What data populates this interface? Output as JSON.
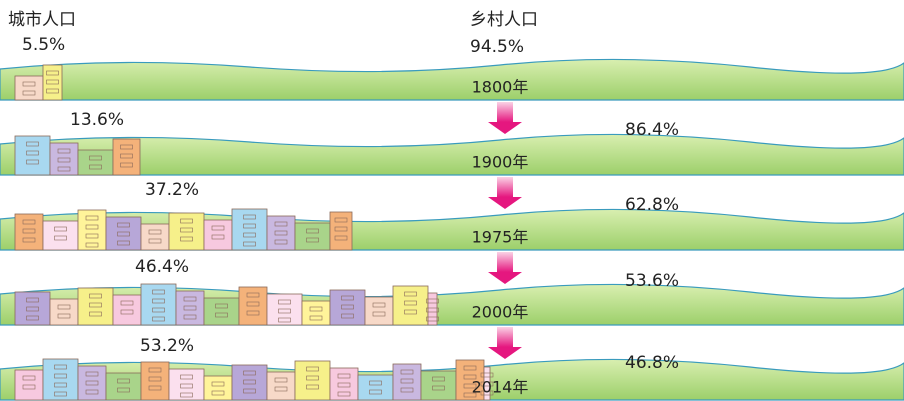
{
  "header": {
    "urban": "城市人口",
    "rural": "乡村人口"
  },
  "rows": [
    {
      "year": "1800年",
      "urban": "5.5%",
      "rural": "94.5%"
    },
    {
      "year": "1900年",
      "urban": "13.6%",
      "rural": "86.4%"
    },
    {
      "year": "1975年",
      "urban": "37.2%",
      "rural": "62.8%"
    },
    {
      "year": "2000年",
      "urban": "46.4%",
      "rural": "53.6%"
    },
    {
      "year": "2014年",
      "urban": "53.2%",
      "rural": "46.8%"
    }
  ]
}
